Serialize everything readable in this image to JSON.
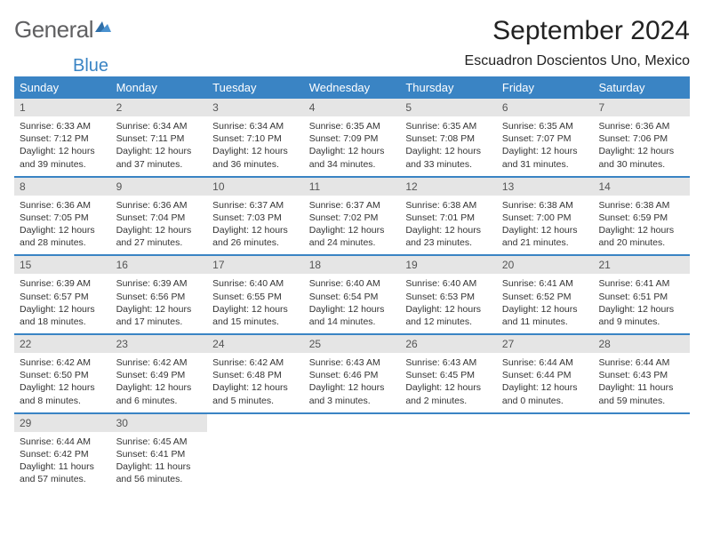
{
  "logo": {
    "general": "General",
    "blue": "Blue"
  },
  "title": "September 2024",
  "location": "Escuadron Doscientos Uno, Mexico",
  "day_header_bg": "#3a84c4",
  "daynum_bg": "#e5e5e5",
  "week_border_color": "#3a84c4",
  "days_of_week": [
    "Sunday",
    "Monday",
    "Tuesday",
    "Wednesday",
    "Thursday",
    "Friday",
    "Saturday"
  ],
  "weeks": [
    [
      {
        "n": "1",
        "sr": "6:33 AM",
        "ss": "7:12 PM",
        "dl": "12 hours and 39 minutes."
      },
      {
        "n": "2",
        "sr": "6:34 AM",
        "ss": "7:11 PM",
        "dl": "12 hours and 37 minutes."
      },
      {
        "n": "3",
        "sr": "6:34 AM",
        "ss": "7:10 PM",
        "dl": "12 hours and 36 minutes."
      },
      {
        "n": "4",
        "sr": "6:35 AM",
        "ss": "7:09 PM",
        "dl": "12 hours and 34 minutes."
      },
      {
        "n": "5",
        "sr": "6:35 AM",
        "ss": "7:08 PM",
        "dl": "12 hours and 33 minutes."
      },
      {
        "n": "6",
        "sr": "6:35 AM",
        "ss": "7:07 PM",
        "dl": "12 hours and 31 minutes."
      },
      {
        "n": "7",
        "sr": "6:36 AM",
        "ss": "7:06 PM",
        "dl": "12 hours and 30 minutes."
      }
    ],
    [
      {
        "n": "8",
        "sr": "6:36 AM",
        "ss": "7:05 PM",
        "dl": "12 hours and 28 minutes."
      },
      {
        "n": "9",
        "sr": "6:36 AM",
        "ss": "7:04 PM",
        "dl": "12 hours and 27 minutes."
      },
      {
        "n": "10",
        "sr": "6:37 AM",
        "ss": "7:03 PM",
        "dl": "12 hours and 26 minutes."
      },
      {
        "n": "11",
        "sr": "6:37 AM",
        "ss": "7:02 PM",
        "dl": "12 hours and 24 minutes."
      },
      {
        "n": "12",
        "sr": "6:38 AM",
        "ss": "7:01 PM",
        "dl": "12 hours and 23 minutes."
      },
      {
        "n": "13",
        "sr": "6:38 AM",
        "ss": "7:00 PM",
        "dl": "12 hours and 21 minutes."
      },
      {
        "n": "14",
        "sr": "6:38 AM",
        "ss": "6:59 PM",
        "dl": "12 hours and 20 minutes."
      }
    ],
    [
      {
        "n": "15",
        "sr": "6:39 AM",
        "ss": "6:57 PM",
        "dl": "12 hours and 18 minutes."
      },
      {
        "n": "16",
        "sr": "6:39 AM",
        "ss": "6:56 PM",
        "dl": "12 hours and 17 minutes."
      },
      {
        "n": "17",
        "sr": "6:40 AM",
        "ss": "6:55 PM",
        "dl": "12 hours and 15 minutes."
      },
      {
        "n": "18",
        "sr": "6:40 AM",
        "ss": "6:54 PM",
        "dl": "12 hours and 14 minutes."
      },
      {
        "n": "19",
        "sr": "6:40 AM",
        "ss": "6:53 PM",
        "dl": "12 hours and 12 minutes."
      },
      {
        "n": "20",
        "sr": "6:41 AM",
        "ss": "6:52 PM",
        "dl": "12 hours and 11 minutes."
      },
      {
        "n": "21",
        "sr": "6:41 AM",
        "ss": "6:51 PM",
        "dl": "12 hours and 9 minutes."
      }
    ],
    [
      {
        "n": "22",
        "sr": "6:42 AM",
        "ss": "6:50 PM",
        "dl": "12 hours and 8 minutes."
      },
      {
        "n": "23",
        "sr": "6:42 AM",
        "ss": "6:49 PM",
        "dl": "12 hours and 6 minutes."
      },
      {
        "n": "24",
        "sr": "6:42 AM",
        "ss": "6:48 PM",
        "dl": "12 hours and 5 minutes."
      },
      {
        "n": "25",
        "sr": "6:43 AM",
        "ss": "6:46 PM",
        "dl": "12 hours and 3 minutes."
      },
      {
        "n": "26",
        "sr": "6:43 AM",
        "ss": "6:45 PM",
        "dl": "12 hours and 2 minutes."
      },
      {
        "n": "27",
        "sr": "6:44 AM",
        "ss": "6:44 PM",
        "dl": "12 hours and 0 minutes."
      },
      {
        "n": "28",
        "sr": "6:44 AM",
        "ss": "6:43 PM",
        "dl": "11 hours and 59 minutes."
      }
    ],
    [
      {
        "n": "29",
        "sr": "6:44 AM",
        "ss": "6:42 PM",
        "dl": "11 hours and 57 minutes."
      },
      {
        "n": "30",
        "sr": "6:45 AM",
        "ss": "6:41 PM",
        "dl": "11 hours and 56 minutes."
      },
      null,
      null,
      null,
      null,
      null
    ]
  ],
  "labels": {
    "sunrise": "Sunrise: ",
    "sunset": "Sunset: ",
    "daylight": "Daylight: "
  }
}
